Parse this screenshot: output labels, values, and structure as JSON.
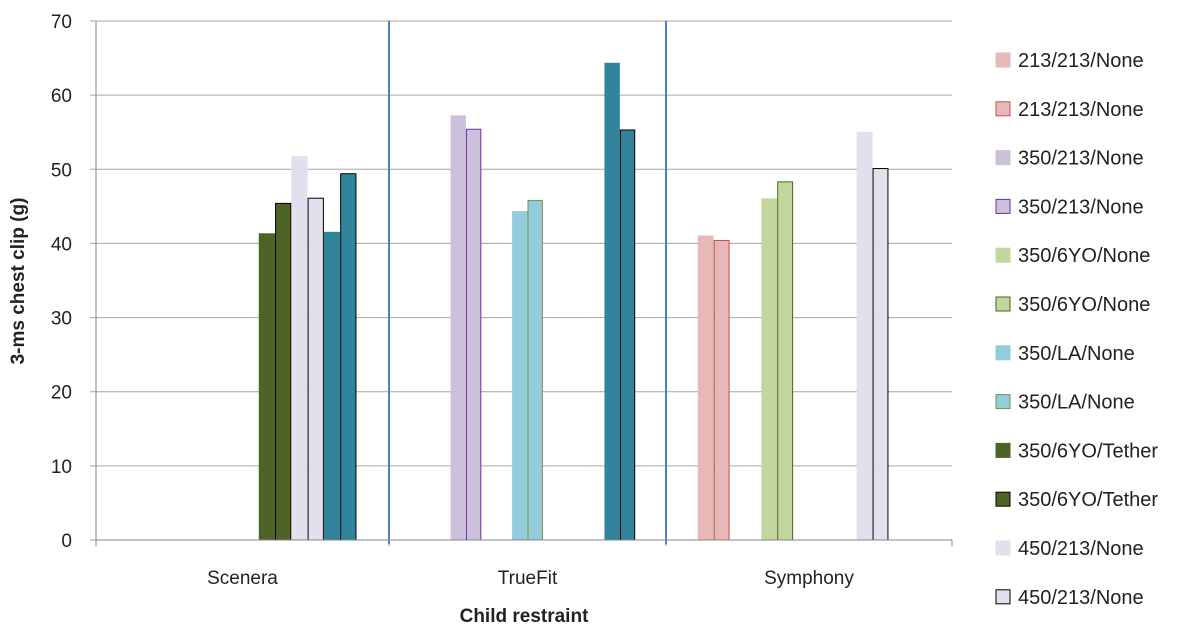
{
  "chart_data": {
    "type": "bar",
    "title": "",
    "xlabel": "Child restraint",
    "ylabel": "3-ms chest clip (g)",
    "ylim": [
      0,
      70
    ],
    "yticks": [
      0,
      10,
      20,
      30,
      40,
      50,
      60,
      70
    ],
    "grid": true,
    "legend_position": "right",
    "categories": [
      "Scenera",
      "TrueFit",
      "Symphony"
    ],
    "series": [
      {
        "name": "213/213/None",
        "fill": "#e6b9b8",
        "stroke": "#e6b9b8",
        "values": [
          null,
          null,
          41.0
        ]
      },
      {
        "name": "213/213/None",
        "fill": "#e6b9b8",
        "stroke": "#c0504d",
        "values": [
          null,
          null,
          40.4
        ]
      },
      {
        "name": "350/213/None",
        "fill": "#ccc1da",
        "stroke": "#ccc1da",
        "values": [
          null,
          57.2,
          null
        ]
      },
      {
        "name": "350/213/None",
        "fill": "#ccc1da",
        "stroke": "#7030a0",
        "values": [
          null,
          55.4,
          null
        ]
      },
      {
        "name": "350/6YO/None",
        "fill": "#c3d69b",
        "stroke": "#c3d69b",
        "values": [
          null,
          null,
          46.0
        ]
      },
      {
        "name": "350/6YO/None",
        "fill": "#c3d69b",
        "stroke": "#4f6228",
        "values": [
          null,
          null,
          48.3
        ]
      },
      {
        "name": "350/LA/None",
        "fill": "#93cddd",
        "stroke": "#93cddd",
        "values": [
          null,
          44.3,
          null
        ]
      },
      {
        "name": "350/LA/None",
        "fill": "#93cddd",
        "stroke": "#77933c",
        "values": [
          null,
          45.8,
          null
        ]
      },
      {
        "name": "350/6YO/Tether",
        "fill": "#4f6228",
        "stroke": "#4f6228",
        "values": [
          41.3,
          null,
          null
        ]
      },
      {
        "name": "350/6YO/Tether",
        "fill": "#4f6228",
        "stroke": "#000000",
        "values": [
          45.4,
          null,
          null
        ]
      },
      {
        "name": "450/213/None",
        "fill": "#e4dfec",
        "stroke": "#e4dfec",
        "values": [
          51.7,
          null,
          55.0
        ]
      },
      {
        "name": "450/213/None",
        "fill": "#e4dfec",
        "stroke": "#000000",
        "values": [
          46.1,
          null,
          50.1
        ]
      },
      {
        "name": "",
        "fill": "#31849b",
        "stroke": "#31849b",
        "values": [
          41.5,
          64.3,
          null
        ]
      },
      {
        "name": "",
        "fill": "#31849b",
        "stroke": "#000000",
        "values": [
          49.4,
          55.3,
          null
        ]
      }
    ]
  }
}
